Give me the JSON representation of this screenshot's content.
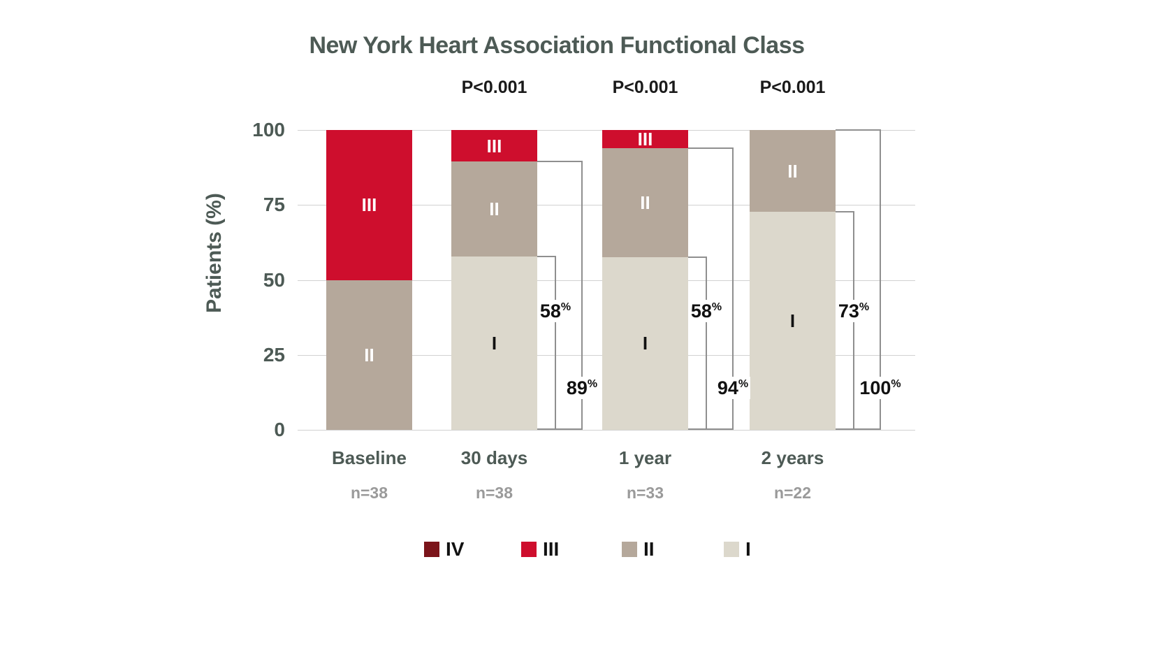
{
  "title": "New York Heart Association Functional Class",
  "y_axis": {
    "label": "Patients (%)",
    "ticks": [
      0,
      25,
      50,
      75,
      100
    ]
  },
  "x_axis": {
    "categories": [
      "Baseline",
      "30 days",
      "1 year",
      "2 years"
    ],
    "n_labels": [
      "n=38",
      "n=38",
      "n=33",
      "n=22"
    ]
  },
  "annotations": {
    "p_values": [
      "",
      "P<0.001",
      "P<0.001",
      "P<0.001"
    ]
  },
  "legend": {
    "items": [
      {
        "label": "IV",
        "color": "#7b141a"
      },
      {
        "label": "III",
        "color": "#ce0e2d"
      },
      {
        "label": "II",
        "color": "#b5a89b"
      },
      {
        "label": "I",
        "color": "#dcd8cc"
      }
    ]
  },
  "colors": {
    "class_IV": "#7b141a",
    "class_III": "#ce0e2d",
    "class_II": "#b5a89b",
    "class_I": "#dcd8cc",
    "axis_text": "#4d5a55",
    "muted_text": "#9a9a9a",
    "bracket_line": "#8f8f8f",
    "gridline": "#d1d1d1"
  },
  "chart_data": {
    "type": "bar",
    "stacked": true,
    "title": "New York Heart Association Functional Class",
    "xlabel": "",
    "ylabel": "Patients (%)",
    "ylim": [
      0,
      100
    ],
    "grid": true,
    "legend_position": "bottom",
    "categories": [
      "Baseline",
      "30 days",
      "1 year",
      "2 years"
    ],
    "n_labels": [
      "n=38",
      "n=38",
      "n=33",
      "n=22"
    ],
    "p_values": [
      "",
      "P<0.001",
      "P<0.001",
      "P<0.001"
    ],
    "series": [
      {
        "name": "I",
        "color": "#dcd8cc",
        "label_color": "#111111",
        "values": [
          0,
          57.9,
          57.6,
          72.7
        ]
      },
      {
        "name": "II",
        "color": "#b5a89b",
        "label_color": "#ffffff",
        "values": [
          50,
          31.6,
          36.3,
          27.3
        ]
      },
      {
        "name": "III",
        "color": "#ce0e2d",
        "label_color": "#ffffff",
        "values": [
          50,
          10.5,
          6.1,
          0
        ]
      },
      {
        "name": "IV",
        "color": "#7b141a",
        "label_color": "#ffffff",
        "values": [
          0,
          0,
          0,
          0
        ]
      }
    ],
    "brackets": [
      {
        "bar": 1,
        "pct": 57.9,
        "text": "58",
        "suffix": "%"
      },
      {
        "bar": 1,
        "pct": 89.5,
        "text": "89",
        "suffix": "%"
      },
      {
        "bar": 2,
        "pct": 57.6,
        "text": "58",
        "suffix": "%"
      },
      {
        "bar": 2,
        "pct": 93.9,
        "text": "94",
        "suffix": "%"
      },
      {
        "bar": 3,
        "pct": 72.7,
        "text": "73",
        "suffix": "%"
      },
      {
        "bar": 3,
        "pct": 100,
        "text": "100",
        "suffix": "%"
      }
    ]
  }
}
